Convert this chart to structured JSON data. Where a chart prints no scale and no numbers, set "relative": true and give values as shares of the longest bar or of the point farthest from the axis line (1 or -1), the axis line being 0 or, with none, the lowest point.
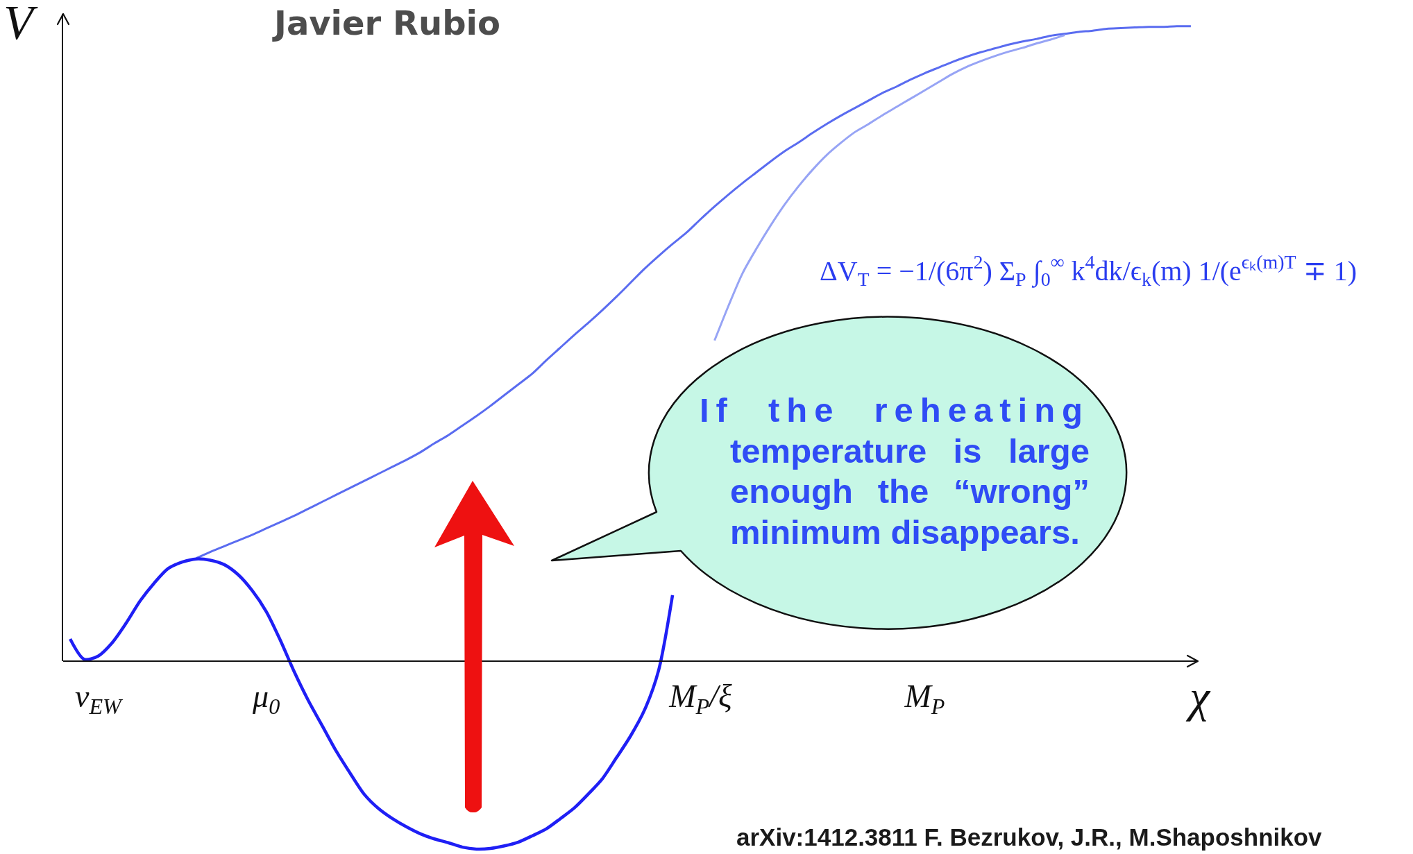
{
  "chart_data": {
    "type": "line",
    "relative": true,
    "title": "Javier Rubio",
    "xlabel": "χ",
    "ylabel": "V",
    "categories": [
      null,
      null,
      "v$_{EW}$",
      null,
      null,
      null,
      null,
      null,
      null,
      null,
      null,
      null,
      null,
      null,
      "μ$_{0}$",
      null,
      null,
      null,
      null,
      null,
      null,
      null,
      null,
      null,
      null,
      null,
      null,
      null,
      null,
      null,
      null,
      null,
      null,
      null,
      null,
      null,
      null,
      null,
      null,
      null,
      null,
      null,
      null,
      null,
      null,
      "M$_{P}$/ξ",
      null,
      null,
      null,
      null,
      null,
      null,
      null,
      null,
      null,
      null,
      null,
      null,
      null,
      null,
      null,
      "M$_{P}$",
      null,
      null,
      null,
      null,
      null,
      null,
      null,
      null,
      null,
      null,
      null,
      null,
      null,
      null,
      null,
      null,
      null,
      null,
      null
    ],
    "series": [
      {
        "color": "#5a6cf0",
        "values": [
          null,
          null,
          null,
          null,
          null,
          null,
          null,
          null,
          null,
          0.162,
          0.172,
          0.181,
          0.19,
          0.199,
          0.209,
          0.219,
          0.229,
          0.24,
          0.251,
          0.262,
          0.273,
          0.284,
          0.295,
          0.306,
          0.317,
          0.329,
          0.343,
          0.356,
          0.371,
          0.386,
          0.402,
          0.419,
          0.436,
          0.453,
          0.474,
          0.494,
          0.514,
          0.533,
          0.553,
          0.574,
          0.596,
          0.618,
          0.638,
          0.657,
          0.675,
          0.696,
          0.716,
          0.735,
          0.753,
          0.77,
          0.787,
          0.803,
          0.817,
          0.832,
          0.846,
          0.859,
          0.871,
          0.883,
          0.895,
          0.905,
          0.916,
          0.926,
          0.935,
          0.944,
          0.952,
          0.959,
          0.965,
          0.971,
          0.976,
          0.98,
          0.985,
          0.988,
          0.991,
          0.993,
          0.996,
          0.997,
          0.998,
          0.999,
          0.999,
          1.0,
          1.0
        ]
      },
      {
        "color": "#97a4f5",
        "values": [
          null,
          null,
          null,
          null,
          null,
          null,
          null,
          null,
          null,
          null,
          null,
          null,
          null,
          null,
          null,
          null,
          null,
          null,
          null,
          null,
          null,
          null,
          null,
          null,
          null,
          null,
          null,
          null,
          null,
          null,
          null,
          null,
          null,
          null,
          null,
          null,
          null,
          null,
          null,
          null,
          null,
          null,
          null,
          null,
          null,
          null,
          0.505,
          0.56,
          0.611,
          0.65,
          0.686,
          0.719,
          0.748,
          0.774,
          0.797,
          0.816,
          0.833,
          0.846,
          0.86,
          0.873,
          0.886,
          0.899,
          0.912,
          0.925,
          0.936,
          0.945,
          0.953,
          0.96,
          0.966,
          0.973,
          0.979,
          0.986,
          null,
          null,
          null,
          null,
          null,
          null,
          null,
          null,
          null
        ]
      },
      {
        "color": "#1f1ff5",
        "values": [
          0.035,
          0.003,
          0.008,
          0.029,
          0.06,
          0.095,
          0.123,
          0.146,
          0.156,
          0.161,
          0.159,
          0.152,
          0.136,
          0.111,
          0.078,
          0.033,
          -0.017,
          -0.062,
          -0.102,
          -0.142,
          -0.177,
          -0.21,
          -0.232,
          -0.248,
          -0.261,
          -0.272,
          -0.28,
          -0.286,
          -0.293,
          -0.296,
          -0.295,
          -0.291,
          -0.285,
          -0.275,
          -0.264,
          -0.248,
          -0.231,
          -0.209,
          -0.185,
          -0.152,
          -0.118,
          -0.077,
          -0.015,
          0.104,
          null,
          null,
          null,
          null,
          null,
          null,
          null,
          null,
          null,
          null,
          null,
          null,
          null,
          null,
          null,
          null,
          null,
          null,
          null,
          null,
          null,
          null,
          null,
          null,
          null,
          null,
          null,
          null,
          null,
          null,
          null,
          null,
          null,
          null,
          null,
          null,
          null
        ]
      }
    ],
    "annotations": [
      "If the reheating temperature is large enough the “wrong” minimum disappears.",
      "ΔV$_{T}$ = −1/(6π$^{2}$) Σ$_{P}$ ∫$_{0}$$^{∞}$ k$^{4}$dk/ϵ$_{k}$(m) 1/(e$^{ϵₖ(m)T}$ ∓ 1)",
      "arXiv:1412.3811 F. Bezrukov, J.R., M.Shaposhnikov"
    ]
  }
}
